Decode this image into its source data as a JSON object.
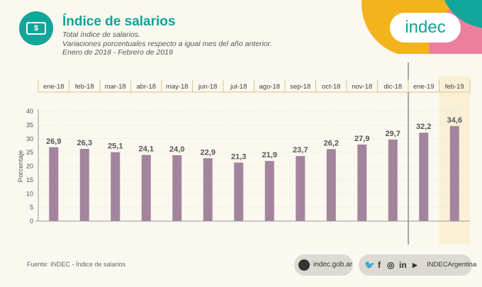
{
  "header": {
    "title": "Índice de salarios",
    "subtitle_lines": [
      "Total índice de salarios.",
      "Variaciones porcentuales respecto a igual mes del año anterior.",
      "Enero de 2018 - Febrero de 2019"
    ],
    "logo_text": "indec",
    "icon": "money-bill-icon",
    "bill_symbol": "$"
  },
  "chart_data": {
    "type": "bar",
    "categories": [
      "ene-18",
      "feb-18",
      "mar-18",
      "abr-18",
      "may-18",
      "jun-18",
      "jul-18",
      "ago-18",
      "sep-18",
      "oct-18",
      "nov-18",
      "dic-18",
      "ene-19",
      "feb-19"
    ],
    "values": [
      26.9,
      26.3,
      25.1,
      24.1,
      24.0,
      22.9,
      21.3,
      21.9,
      23.7,
      26.2,
      27.9,
      29.7,
      32.2,
      34.6
    ],
    "value_labels": [
      "26,9",
      "26,3",
      "25,1",
      "24,1",
      "24,0",
      "22,9",
      "21,3",
      "21,9",
      "23,7",
      "26,2",
      "27,9",
      "29,7",
      "32,2",
      "34,6"
    ],
    "ylabel": "Porcentaje",
    "ylim": [
      0,
      40
    ],
    "yticks": [
      0,
      5,
      10,
      15,
      20,
      25,
      30,
      35,
      40
    ],
    "highlight_category": "feb-19",
    "grid": true,
    "colors": {
      "bar": "#a2849d",
      "highlight_band": "#faf0d6",
      "tick_line": "#d9c58e"
    }
  },
  "footer": {
    "source": "Fuente: INDEC - Índice de salarios",
    "website": "indec.gob.ar",
    "social_handle": "INDECArgentina",
    "social_icons": [
      "twitter-icon",
      "facebook-icon",
      "instagram-icon",
      "linkedin-icon",
      "youtube-icon"
    ],
    "social_glyphs": [
      "🐦",
      "f",
      "◎",
      "in",
      "▶"
    ]
  }
}
